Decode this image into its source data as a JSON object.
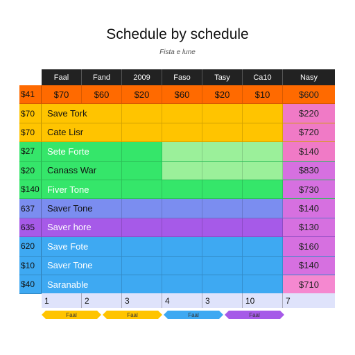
{
  "title": "Schedule by schedule",
  "subtitle": "Fista e lune",
  "columns": [
    "Faal",
    "Fand",
    "2009",
    "Faso",
    "Tasy",
    "Ca10",
    "Nasy"
  ],
  "top_row": {
    "lead": "$41",
    "cells": [
      "$70",
      "$60",
      "$20",
      "$60",
      "$20",
      "$10"
    ],
    "right": "$600"
  },
  "rows": [
    {
      "lead": "$70",
      "name": "Save Tork",
      "right": "$220"
    },
    {
      "lead": "$70",
      "name": "Cate Lisr",
      "right": "$720"
    },
    {
      "lead": "$27",
      "name": "Sete Forte",
      "right": "$140"
    },
    {
      "lead": "$20",
      "name": "Canass War",
      "right": "$830"
    },
    {
      "lead": "$140",
      "name": "Fiver Tone",
      "right": "$730"
    },
    {
      "lead": "637",
      "name": "Saver Tone",
      "right": "$140"
    },
    {
      "lead": "635",
      "name": "Saver hore",
      "right": "$130"
    },
    {
      "lead": "620",
      "name": "Save Fote",
      "right": "$160"
    },
    {
      "lead": "$10",
      "name": "Saver Tone",
      "right": "$140"
    },
    {
      "lead": "$40",
      "name": "Saranable",
      "right": "$710"
    }
  ],
  "footer": [
    "1",
    "2",
    "3",
    "4",
    "3",
    "10",
    "7"
  ],
  "legend": [
    "Faal",
    "Faal",
    "Faal",
    "Faal"
  ],
  "colors": {
    "orange": "#ff6a00",
    "yellow": "#ffc400",
    "green": "#35e66a",
    "green_light": "#9bf09a",
    "violet": "#7b8df0",
    "purple": "#a65ae8",
    "blue": "#3ea9f2",
    "pink": "#f07ac6",
    "pink_light": "#f588d0",
    "header": "#222222",
    "footer": "#dfe3fb"
  }
}
